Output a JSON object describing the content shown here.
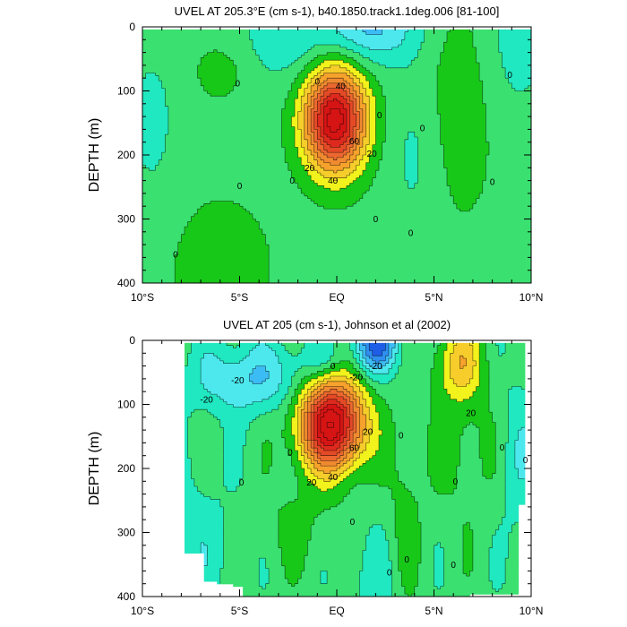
{
  "chart_data": [
    {
      "type": "contour",
      "variable": "UVEL",
      "title": "UVEL AT 205.3°E (cm s-1), b40.1850.track1.1deg.006 [81-100]",
      "ylabel": "DEPTH (m)",
      "xlabel": "",
      "xlim": [
        -10,
        10
      ],
      "ylim": [
        400,
        0
      ],
      "x_ticks": [
        {
          "value": -10,
          "label": "10°S"
        },
        {
          "value": -5,
          "label": "5°S"
        },
        {
          "value": 0,
          "label": "EQ"
        },
        {
          "value": 5,
          "label": "5°N"
        },
        {
          "value": 10,
          "label": "10°N"
        }
      ],
      "y_ticks": [
        0,
        100,
        200,
        300,
        400
      ],
      "contour_interval": 10,
      "contour_labels": [
        {
          "text": "40",
          "lat": 0.2,
          "depth": 92
        },
        {
          "text": "60",
          "lat": 0.9,
          "depth": 178
        },
        {
          "text": "40",
          "lat": -0.2,
          "depth": 240
        },
        {
          "text": "20",
          "lat": -1.4,
          "depth": 220
        },
        {
          "text": "20",
          "lat": 1.8,
          "depth": 198
        },
        {
          "text": "0",
          "lat": -5.1,
          "depth": 88
        },
        {
          "text": "0",
          "lat": -1.0,
          "depth": 85
        },
        {
          "text": "0",
          "lat": 2.2,
          "depth": 138
        },
        {
          "text": "0",
          "lat": 4.4,
          "depth": 158
        },
        {
          "text": "0",
          "lat": 8.9,
          "depth": 75
        },
        {
          "text": "0",
          "lat": -5.0,
          "depth": 248
        },
        {
          "text": "0",
          "lat": -2.3,
          "depth": 240
        },
        {
          "text": "0",
          "lat": 2.0,
          "depth": 300
        },
        {
          "text": "0",
          "lat": 3.8,
          "depth": 322
        },
        {
          "text": "0",
          "lat": 8.0,
          "depth": 242
        },
        {
          "text": "0",
          "lat": -8.3,
          "depth": 355
        }
      ],
      "features": [
        {
          "name": "eastward undercurrent core",
          "lat": -0.1,
          "depth": 145,
          "max_value": 95
        },
        {
          "name": "westward surface flow",
          "lat": 1.8,
          "depth": 0,
          "min_value": -25
        }
      ]
    },
    {
      "type": "contour",
      "variable": "UVEL",
      "title": "UVEL AT 205 (cm s-1), Johnson et al (2002)",
      "ylabel": "DEPTH (m)",
      "xlabel": "",
      "xlim": [
        -10,
        10
      ],
      "ylim": [
        400,
        0
      ],
      "x_ticks": [
        {
          "value": -10,
          "label": "10°S"
        },
        {
          "value": -5,
          "label": "5°S"
        },
        {
          "value": 0,
          "label": "EQ"
        },
        {
          "value": 5,
          "label": "5°N"
        },
        {
          "value": 10,
          "label": "10°N"
        }
      ],
      "y_ticks": [
        0,
        100,
        200,
        300,
        400
      ],
      "contour_interval": 10,
      "contour_labels": [
        {
          "text": "-20",
          "lat": -6.7,
          "depth": 92
        },
        {
          "text": "-20",
          "lat": -5.1,
          "depth": 62
        },
        {
          "text": "-20",
          "lat": 1.0,
          "depth": 57
        },
        {
          "text": "-20",
          "lat": 2.0,
          "depth": 40
        },
        {
          "text": "0",
          "lat": -0.2,
          "depth": 40
        },
        {
          "text": "20",
          "lat": 1.6,
          "depth": 143
        },
        {
          "text": "60",
          "lat": 0.9,
          "depth": 168
        },
        {
          "text": "40",
          "lat": -0.2,
          "depth": 213
        },
        {
          "text": "20",
          "lat": -1.3,
          "depth": 222
        },
        {
          "text": "0",
          "lat": 3.3,
          "depth": 148
        },
        {
          "text": "20",
          "lat": 6.9,
          "depth": 113
        },
        {
          "text": "0",
          "lat": -2.4,
          "depth": 175
        },
        {
          "text": "0",
          "lat": -4.9,
          "depth": 222
        },
        {
          "text": "0",
          "lat": 0.8,
          "depth": 283
        },
        {
          "text": "0",
          "lat": 2.7,
          "depth": 362
        },
        {
          "text": "0",
          "lat": 3.6,
          "depth": 342
        },
        {
          "text": "0",
          "lat": 6.1,
          "depth": 220
        },
        {
          "text": "0",
          "lat": 8.5,
          "depth": 167
        },
        {
          "text": "0",
          "lat": 9.7,
          "depth": 187
        },
        {
          "text": "0",
          "lat": 6.0,
          "depth": 350
        }
      ],
      "features": [
        {
          "name": "eastward undercurrent core",
          "lat": -0.2,
          "depth": 130,
          "max_value": 100
        },
        {
          "name": "eastward northern countercurrent",
          "lat": 6.3,
          "depth": 40,
          "max_value": 30
        },
        {
          "name": "westward surface flow",
          "lat": 1.9,
          "depth": 10,
          "min_value": -45
        }
      ]
    }
  ]
}
